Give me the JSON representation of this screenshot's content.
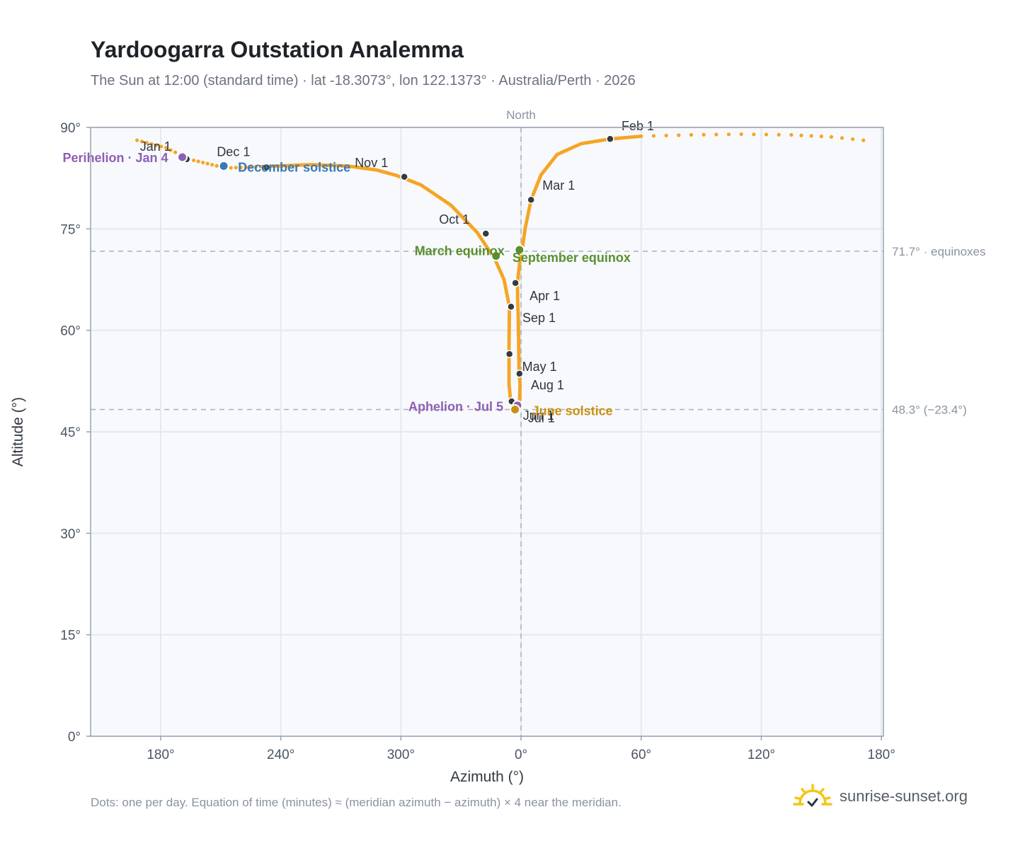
{
  "title": "Yardoogarra Outstation Analemma",
  "subtitle": "The Sun at 12:00 (standard time) · lat -18.3073°, lon 122.1373° · Australia/Perth · 2026",
  "footer_note": "Dots: one per day. Equation of time (minutes) ≈ (meridian azimuth − azimuth) × 4 near the meridian.",
  "brand": {
    "name": "sunrise-sunset.org",
    "icon": "sun-logo-icon"
  },
  "colors": {
    "analemma": "#f5a524",
    "month_dot": "#343a40",
    "perihelion": "#8e5fb3",
    "aphelion": "#8e5fb3",
    "december_solstice": "#3a78b6",
    "june_solstice": "#c99110",
    "equinox": "#5a8f2e",
    "reference_line": "#a7b0ba",
    "grid": "#e4e9ee",
    "plot_bg": "#f7f9fc"
  },
  "chart_data": {
    "type": "scatter",
    "title": "Yardoogarra Outstation Analemma",
    "xlabel": "Azimuth (°)",
    "ylabel": "Altitude (°)",
    "xlim": [
      145,
      541
    ],
    "ylim": [
      0,
      90
    ],
    "x_ticks": [
      {
        "value": 180,
        "label": "180°"
      },
      {
        "value": 240,
        "label": "240°"
      },
      {
        "value": 300,
        "label": "300°"
      },
      {
        "value": 360,
        "label": "0°"
      },
      {
        "value": 420,
        "label": "60°"
      },
      {
        "value": 480,
        "label": "120°"
      },
      {
        "value": 540,
        "label": "180°"
      }
    ],
    "y_ticks": [
      {
        "value": 0,
        "label": "0°"
      },
      {
        "value": 15,
        "label": "15°"
      },
      {
        "value": 30,
        "label": "30°"
      },
      {
        "value": 45,
        "label": "45°"
      },
      {
        "value": 60,
        "label": "60°"
      },
      {
        "value": 75,
        "label": "75°"
      },
      {
        "value": 90,
        "label": "90°"
      }
    ],
    "grid": true,
    "north_label": "North",
    "north_azimuth": 360,
    "reference_lines": [
      {
        "altitude": 71.7,
        "label": "71.7° · equinoxes"
      },
      {
        "altitude": 48.3,
        "label": "48.3° (−23.4°)"
      }
    ],
    "daily_curve": [
      [
        168.2,
        88.1
      ],
      [
        182.7,
        87.0
      ],
      [
        194.2,
        85.3
      ],
      [
        212.6,
        84.0
      ],
      [
        230.0,
        84.2
      ],
      [
        254.5,
        84.5
      ],
      [
        273.6,
        84.3
      ],
      [
        288.0,
        83.7
      ],
      [
        297.8,
        82.9
      ],
      [
        310.0,
        81.5
      ],
      [
        325.0,
        78.5
      ],
      [
        338.0,
        74.5
      ],
      [
        347.0,
        70.5
      ],
      [
        351.5,
        67.5
      ],
      [
        354.2,
        63.5
      ],
      [
        354.0,
        58.0
      ],
      [
        354.0,
        52.0
      ],
      [
        354.8,
        49.5
      ],
      [
        357.0,
        48.4
      ],
      [
        359.2,
        49.1
      ],
      [
        359.5,
        52.0
      ],
      [
        359.0,
        54.0
      ],
      [
        358.8,
        58.0
      ],
      [
        358.6,
        62.0
      ],
      [
        358.3,
        64.5
      ],
      [
        358.2,
        67.0
      ],
      [
        359.3,
        70.0
      ],
      [
        360.6,
        72.0
      ],
      [
        362.0,
        75.0
      ],
      [
        365.0,
        79.3
      ],
      [
        370.0,
        83.0
      ],
      [
        378.0,
        86.0
      ],
      [
        390.0,
        87.6
      ],
      [
        404.5,
        88.3
      ],
      [
        420.0,
        88.7
      ],
      [
        445.0,
        88.9
      ],
      [
        470.0,
        89.0
      ],
      [
        495.0,
        88.9
      ],
      [
        515.0,
        88.6
      ],
      [
        531.0,
        88.1
      ]
    ],
    "month_markers": [
      {
        "label": "Jan 1",
        "az": 193.0,
        "alt": 85.3,
        "dx": -66,
        "dy": -12
      },
      {
        "label": "Feb 1",
        "az": 404.5,
        "alt": 88.3,
        "dx": 16,
        "dy": -12
      },
      {
        "label": "Mar 1",
        "az": 365.0,
        "alt": 79.3,
        "dx": 16,
        "dy": -14
      },
      {
        "label": "Apr 1",
        "az": 357.2,
        "alt": 67.0,
        "dx": 20,
        "dy": 24
      },
      {
        "label": "May 1",
        "az": 354.2,
        "alt": 56.5,
        "dx": 18,
        "dy": 24
      },
      {
        "label": "Jun 1",
        "az": 355.3,
        "alt": 49.5,
        "dx": 16,
        "dy": 26
      },
      {
        "label": "Jul 1",
        "az": 357.8,
        "alt": 48.5,
        "dx": 16,
        "dy": 20
      },
      {
        "label": "Aug 1",
        "az": 359.2,
        "alt": 53.6,
        "dx": 16,
        "dy": 22
      },
      {
        "label": "Sep 1",
        "az": 355.0,
        "alt": 63.5,
        "dx": 16,
        "dy": 22
      },
      {
        "label": "Oct 1",
        "az": 342.4,
        "alt": 74.3,
        "dx": -66,
        "dy": -14
      },
      {
        "label": "Nov 1",
        "az": 301.7,
        "alt": 82.7,
        "dx": -70,
        "dy": -14
      },
      {
        "label": "Dec 1",
        "az": 232.8,
        "alt": 84.1,
        "dx": -70,
        "dy": -16
      }
    ],
    "events": [
      {
        "label": "Perihelion · Jan 4",
        "az": 190.8,
        "alt": 85.6,
        "color": "#8e5fb3",
        "anchor": "end",
        "dx": -20,
        "dy": 7
      },
      {
        "label": "December solstice",
        "az": 211.5,
        "alt": 84.3,
        "color": "#3a78b6",
        "anchor": "start",
        "dx": 20,
        "dy": 8
      },
      {
        "label": "March equinox",
        "az": 347.5,
        "alt": 71.0,
        "color": "#5a8f2e",
        "anchor": "end",
        "dx": 12,
        "dy": -1
      },
      {
        "label": "September equinox",
        "az": 359.2,
        "alt": 71.9,
        "color": "#5a8f2e",
        "anchor": "start",
        "dx": -10,
        "dy": 17
      },
      {
        "label": "Aphelion · Jul 5",
        "az": 358.2,
        "alt": 48.9,
        "color": "#8e5fb3",
        "anchor": "end",
        "dx": -20,
        "dy": 8
      },
      {
        "label": "June solstice",
        "az": 357.0,
        "alt": 48.3,
        "color": "#c99110",
        "anchor": "start",
        "dx": 24,
        "dy": 8
      }
    ]
  }
}
